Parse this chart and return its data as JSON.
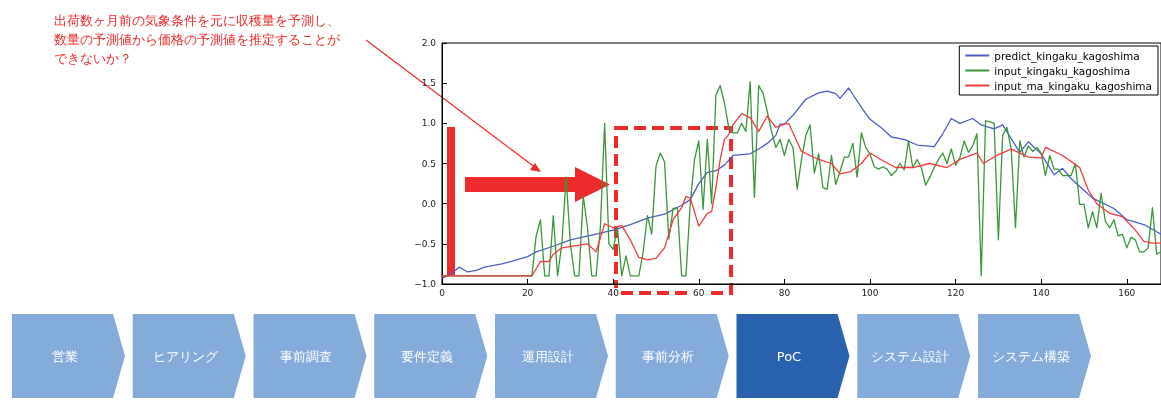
{
  "chart_data": [
    {
      "type": "line",
      "annotations": [
        "出荷数ヶ月前の気象条件を元に収穫量を予測し、数量の予測値から価格の予測値を推定することができないか？"
      ],
      "xlim": [
        0,
        168
      ],
      "xticks": [
        0,
        20,
        40,
        60,
        80,
        100,
        120,
        140,
        160
      ],
      "ylim": [
        -1,
        2
      ],
      "yticks": [
        {
          "value": -1,
          "label": "−1.0"
        },
        {
          "value": -0.5,
          "label": "−0.5"
        },
        {
          "value": 0,
          "label": "0.0"
        },
        {
          "value": 0.5,
          "label": "0.5"
        },
        {
          "value": 1,
          "label": "1.0"
        },
        {
          "value": 1.5,
          "label": "1.5"
        },
        {
          "value": 2,
          "label": "2.0"
        }
      ],
      "grid": false,
      "legend": "top right",
      "marker": "none",
      "line_style": "solid",
      "series": [
        {
          "name": "predict_kingaku_kagoshima",
          "color": "#4a5ec4",
          "x": [
            0,
            2,
            4,
            6,
            8,
            10,
            14,
            16,
            20,
            22,
            26,
            30,
            36,
            40,
            44,
            48,
            52,
            56,
            58,
            60,
            62,
            64,
            66,
            68,
            70,
            72,
            74,
            76,
            78,
            79,
            80,
            82,
            85,
            88,
            90,
            92,
            93,
            95,
            98,
            100,
            103,
            105,
            108,
            111,
            115,
            117,
            119,
            121,
            124,
            126,
            129,
            131,
            135,
            137,
            140,
            143,
            145,
            147,
            152,
            157,
            160,
            164,
            168
          ],
          "values": [
            -0.93,
            -0.88,
            -0.79,
            -0.85,
            -0.83,
            -0.79,
            -0.75,
            -0.72,
            -0.66,
            -0.6,
            -0.53,
            -0.45,
            -0.38,
            -0.33,
            -0.26,
            -0.18,
            -0.13,
            -0.02,
            0.05,
            0.25,
            0.39,
            0.41,
            0.48,
            0.6,
            0.61,
            0.62,
            0.68,
            0.75,
            0.85,
            0.99,
            0.99,
            1.1,
            1.3,
            1.38,
            1.4,
            1.37,
            1.31,
            1.44,
            1.2,
            1.05,
            0.93,
            0.83,
            0.8,
            0.73,
            0.71,
            0.87,
            1.06,
            1.0,
            1.06,
            0.98,
            0.93,
            0.98,
            0.64,
            0.77,
            0.62,
            0.36,
            0.44,
            0.31,
            0.07,
            -0.06,
            -0.2,
            -0.26,
            -0.38
          ]
        },
        {
          "name": "input_kingaku_kagoshima",
          "color": "#3b963b",
          "x": [
            0,
            21,
            22,
            23,
            24,
            25,
            26,
            27,
            28,
            29,
            30,
            31,
            32,
            33,
            34,
            35,
            36,
            37,
            38,
            39,
            40,
            41,
            42,
            43,
            44,
            46,
            47,
            48,
            49,
            50,
            51,
            52,
            53,
            54,
            55,
            56,
            57,
            58,
            59,
            60,
            61,
            62,
            63,
            64,
            65,
            66,
            67,
            68,
            69,
            70,
            71,
            72,
            73,
            74,
            75,
            76,
            77,
            78,
            79,
            80,
            81,
            82,
            83,
            84,
            85,
            86,
            87,
            88,
            89,
            90,
            91,
            92,
            93,
            94,
            95,
            96,
            97,
            98,
            99,
            100,
            101,
            102,
            103,
            104,
            105,
            106,
            107,
            108,
            109,
            110,
            111,
            112,
            113,
            114,
            115,
            116,
            117,
            118,
            119,
            120,
            121,
            122,
            123,
            124,
            125,
            126,
            127,
            128,
            129,
            130,
            131,
            132,
            133,
            134,
            135,
            136,
            137,
            138,
            139,
            140,
            141,
            142,
            143,
            144,
            145,
            146,
            147,
            148,
            149,
            150,
            151,
            152,
            153,
            154,
            155,
            156,
            157,
            158,
            159,
            160,
            161,
            162,
            163,
            164,
            165,
            166,
            167,
            168
          ],
          "values": [
            -0.9,
            -0.9,
            -0.4,
            -0.2,
            -0.9,
            -0.9,
            -0.15,
            -0.9,
            -0.5,
            0.33,
            -0.5,
            -0.9,
            -0.9,
            0.1,
            -0.3,
            -0.9,
            -0.9,
            -0.3,
            1.0,
            -0.5,
            -0.57,
            -0.3,
            -0.9,
            -0.65,
            -0.9,
            -0.9,
            -0.6,
            -0.15,
            -0.38,
            0.47,
            0.63,
            0.52,
            -0.44,
            -0.06,
            -0.05,
            -0.9,
            -0.9,
            0.0,
            0.55,
            0.78,
            -0.07,
            0.8,
            0.0,
            1.35,
            1.47,
            1.25,
            0.95,
            0.88,
            0.88,
            1.0,
            0.9,
            1.52,
            0.08,
            1.47,
            1.38,
            1.15,
            0.9,
            0.7,
            0.8,
            0.6,
            0.8,
            0.7,
            0.18,
            0.55,
            0.85,
            0.98,
            0.38,
            0.62,
            0.2,
            0.18,
            0.6,
            0.24,
            0.4,
            0.58,
            0.58,
            0.75,
            0.33,
            0.88,
            0.7,
            0.62,
            0.46,
            0.43,
            0.46,
            0.43,
            0.35,
            0.4,
            0.5,
            0.42,
            0.78,
            0.45,
            0.55,
            0.45,
            0.23,
            0.33,
            0.45,
            0.55,
            0.63,
            0.5,
            0.68,
            0.48,
            0.57,
            0.78,
            0.64,
            0.72,
            0.87,
            -0.9,
            1.03,
            1.02,
            1.0,
            -0.45,
            0.85,
            0.95,
            0.68,
            -0.3,
            0.78,
            0.58,
            0.72,
            0.65,
            0.7,
            0.63,
            0.35,
            0.6,
            0.43,
            0.43,
            0.35,
            0.35,
            0.35,
            0.5,
            -0.01,
            -0.01,
            -0.3,
            -0.1,
            -0.3,
            0.13,
            -0.22,
            -0.3,
            -0.2,
            -0.4,
            -0.38,
            -0.55,
            -0.42,
            -0.45,
            -0.6,
            -0.6,
            -0.55,
            -0.05,
            -0.63,
            -0.6
          ]
        },
        {
          "name": "input_ma_kingaku_kagoshima",
          "color": "#ee3b3b",
          "x": [
            0,
            21,
            23,
            25,
            26,
            28,
            34,
            36,
            38,
            40,
            42,
            44,
            46,
            48,
            50,
            52,
            54,
            56,
            57,
            58,
            60,
            62,
            63,
            64,
            65,
            66,
            67,
            68,
            70,
            72,
            74,
            76,
            78,
            80,
            81,
            84,
            86,
            88,
            91,
            93,
            95.5,
            98,
            100,
            102.5,
            106,
            110,
            114,
            118,
            121,
            125,
            126.5,
            129.6,
            133,
            137,
            140,
            141,
            145,
            149,
            151,
            153,
            156,
            159,
            162,
            164,
            166,
            168
          ],
          "values": [
            -0.9,
            -0.9,
            -0.72,
            -0.72,
            -0.63,
            -0.55,
            -0.5,
            -0.6,
            -0.25,
            -0.3,
            -0.27,
            -0.45,
            -0.67,
            -0.7,
            -0.68,
            -0.55,
            -0.2,
            -0.05,
            0.09,
            0.07,
            -0.28,
            -0.12,
            -0.1,
            0.2,
            0.55,
            0.8,
            0.86,
            0.98,
            1.12,
            1.07,
            0.9,
            1.09,
            0.95,
            0.99,
            1.0,
            0.65,
            0.6,
            0.55,
            0.5,
            0.37,
            0.4,
            0.5,
            0.63,
            0.55,
            0.45,
            0.45,
            0.5,
            0.45,
            0.55,
            0.63,
            0.5,
            0.6,
            0.68,
            0.58,
            0.57,
            0.7,
            0.6,
            0.45,
            0.17,
            0.0,
            -0.12,
            -0.16,
            -0.33,
            -0.47,
            -0.49,
            -0.49
          ]
        }
      ]
    },
    {
      "type": "other",
      "categories": [
        "営業",
        "ヒアリング",
        "事前調査",
        "要件定義",
        "運用設計",
        "事前分析",
        "PoC",
        "システム設計",
        "システム構築"
      ],
      "colors": [
        "#83acdb",
        "#83acdb",
        "#83acdb",
        "#83acdb",
        "#83acdb",
        "#83acdb",
        "#2a63ad",
        "#83acdb",
        "#83acdb"
      ]
    }
  ]
}
